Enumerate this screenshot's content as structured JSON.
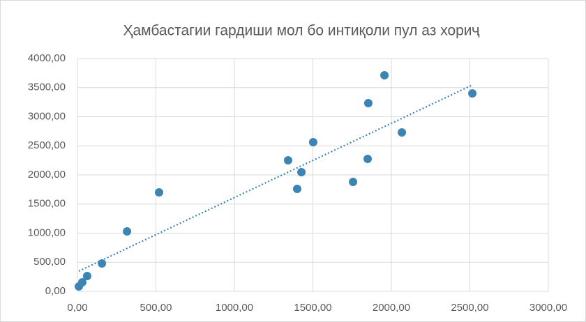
{
  "chart_data": {
    "type": "scatter",
    "title": "Ҳамбастагии гардиши мол бо интиқоли пул аз хориҷ",
    "color": "#3c84b4",
    "x": [
      9,
      31,
      62,
      156,
      316,
      520,
      1342,
      1427,
      1400,
      1502,
      1756,
      1849,
      1853,
      1956,
      2067,
      2516
    ],
    "values": [
      84,
      156,
      263,
      479,
      1030,
      1700,
      2251,
      2048,
      1760,
      2563,
      1880,
      2275,
      3234,
      3713,
      2731,
      3401
    ],
    "trendline": {
      "x": [
        9,
        2516
      ],
      "values": [
        347,
        3545
      ]
    },
    "xlim": [
      0,
      3000
    ],
    "xticks": [
      {
        "value": 0,
        "label": "0,00"
      },
      {
        "value": 500,
        "label": "500,00"
      },
      {
        "value": 1000,
        "label": "1000,00"
      },
      {
        "value": 1500,
        "label": "1500,00"
      },
      {
        "value": 2000,
        "label": "2000,00"
      },
      {
        "value": 2500,
        "label": "2500,00"
      },
      {
        "value": 3000,
        "label": "3000,00"
      }
    ],
    "ylim": [
      0,
      4000
    ],
    "yticks": [
      {
        "value": 0,
        "label": "0,00"
      },
      {
        "value": 500,
        "label": "500,00"
      },
      {
        "value": 1000,
        "label": "1000,00"
      },
      {
        "value": 1500,
        "label": "1500,00"
      },
      {
        "value": 2000,
        "label": "2000,00"
      },
      {
        "value": 2500,
        "label": "2500,00"
      },
      {
        "value": 3000,
        "label": "3000,00"
      },
      {
        "value": 3500,
        "label": "3500,00"
      },
      {
        "value": 4000,
        "label": "4000,00"
      }
    ],
    "grid": true
  }
}
